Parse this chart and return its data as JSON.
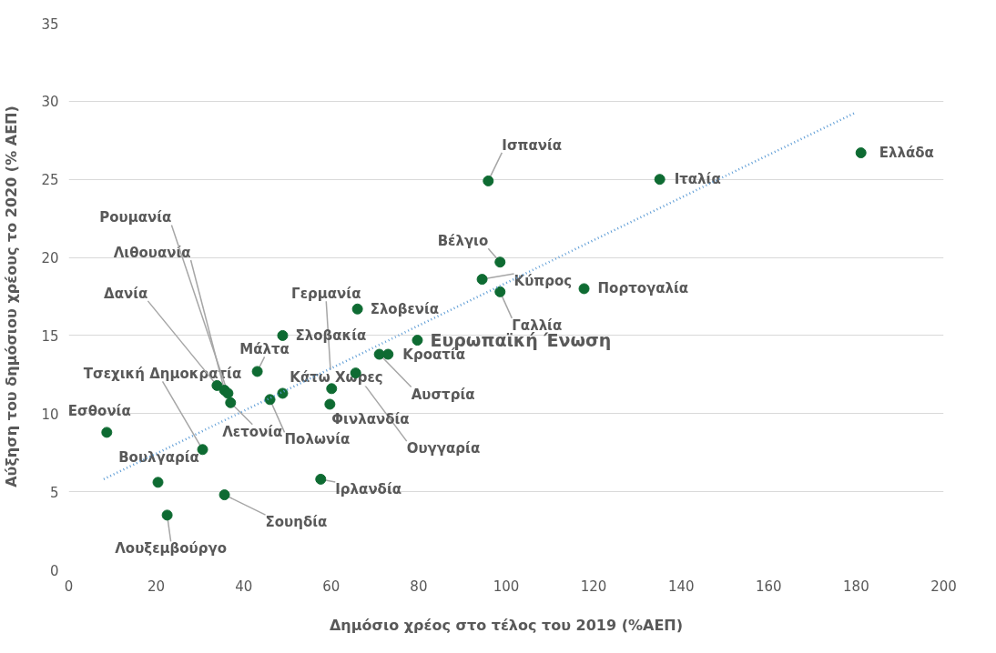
{
  "chart_data": {
    "type": "scatter",
    "xlabel": "Δημόσιο χρέος στο τέλος του 2019 (%ΑΕΠ)",
    "ylabel": "Αύξηση του δημόσιου χρέους το 2020 (% ΑΕΠ)",
    "xlim": [
      0,
      200
    ],
    "xticks": [
      0,
      20,
      40,
      60,
      80,
      100,
      120,
      140,
      160,
      180,
      200
    ],
    "ylim": [
      0,
      35
    ],
    "yticks": [
      0,
      5,
      10,
      15,
      20,
      25,
      30,
      35
    ],
    "grid": "y",
    "series": [
      {
        "color": "#0e6b32",
        "marker": "circle",
        "x": [
          181.1,
          135.1,
          95.9,
          117.8,
          98.6,
          94.5,
          98.6,
          79.7,
          66.0,
          73.0,
          71.0,
          65.6,
          59.7,
          60.1,
          48.9,
          46.0,
          48.9,
          43.1,
          57.6,
          35.6,
          22.5,
          20.4,
          8.7,
          30.6,
          37.0,
          33.9,
          35.6,
          36.4
        ],
        "values": [
          26.7,
          25.0,
          24.9,
          18.0,
          19.7,
          18.6,
          17.8,
          14.7,
          16.7,
          13.8,
          13.8,
          12.6,
          10.6,
          11.6,
          11.3,
          10.9,
          15.0,
          12.7,
          5.8,
          4.8,
          3.5,
          5.6,
          8.8,
          7.7,
          10.7,
          11.8,
          11.5,
          11.3
        ]
      },
      {
        "type": "line",
        "color": "#5b9bd5",
        "line_style": "dotted",
        "marker": "none",
        "x": [
          8,
          180
        ],
        "values": [
          5.8,
          29.3
        ]
      }
    ],
    "annotations": [
      {
        "text": "Ελλάδα",
        "x": 181.1,
        "y": 26.7
      },
      {
        "text": "Ιταλία",
        "x": 135.1,
        "y": 25.0
      },
      {
        "text": "Ισπανία",
        "x": 95.9,
        "y": 24.9
      },
      {
        "text": "Πορτογαλία",
        "x": 117.8,
        "y": 18.0
      },
      {
        "text": "Βέλγιο",
        "x": 98.6,
        "y": 19.7
      },
      {
        "text": "Κύπρος",
        "x": 94.5,
        "y": 18.6
      },
      {
        "text": "Γαλλία",
        "x": 98.6,
        "y": 17.8
      },
      {
        "text": "Ευρωπαϊκή Ένωση",
        "x": 79.7,
        "y": 14.7
      },
      {
        "text": "Σλοβενία",
        "x": 66.0,
        "y": 16.7
      },
      {
        "text": "Κροατία",
        "x": 73.0,
        "y": 13.8
      },
      {
        "text": "Αυστρία",
        "x": 71.0,
        "y": 13.8
      },
      {
        "text": "Ουγγαρία",
        "x": 65.6,
        "y": 12.6
      },
      {
        "text": "Φινλανδία",
        "x": 59.7,
        "y": 10.6
      },
      {
        "text": "Γερμανία",
        "x": 60.1,
        "y": 11.6
      },
      {
        "text": "Κάτω Χώρες",
        "x": 48.9,
        "y": 11.3
      },
      {
        "text": "Πολωνία",
        "x": 46.0,
        "y": 10.9
      },
      {
        "text": "Σλοβακία",
        "x": 48.9,
        "y": 15.0
      },
      {
        "text": "Μάλτα",
        "x": 43.1,
        "y": 12.7
      },
      {
        "text": "Ιρλανδία",
        "x": 57.6,
        "y": 5.8
      },
      {
        "text": "Σουηδία",
        "x": 35.6,
        "y": 4.8
      },
      {
        "text": "Λουξεμβούργο",
        "x": 22.5,
        "y": 3.5
      },
      {
        "text": "Βουλγαρία",
        "x": 20.4,
        "y": 5.6
      },
      {
        "text": "Εσθονία",
        "x": 8.7,
        "y": 8.8
      },
      {
        "text": "Τσεχική Δημοκρατία",
        "x": 30.6,
        "y": 7.7
      },
      {
        "text": "Λετονία",
        "x": 37.0,
        "y": 10.7
      },
      {
        "text": "Δανία",
        "x": 33.9,
        "y": 11.8
      },
      {
        "text": "Λιθουανία",
        "x": 35.6,
        "y": 11.5
      },
      {
        "text": "Ρουμανία",
        "x": 36.4,
        "y": 11.3
      }
    ]
  }
}
